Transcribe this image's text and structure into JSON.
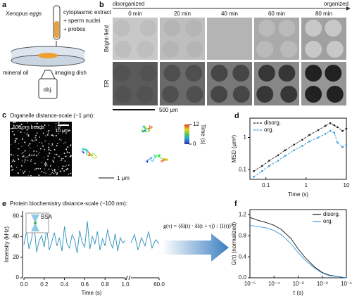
{
  "panel_labels": [
    "a",
    "b",
    "c",
    "d",
    "e",
    "f"
  ],
  "schematic": {
    "eggs": "Xenopus eggs",
    "extract": "cytoplasmic extract",
    "additions": [
      "+ sperm nuclei",
      "+ probes"
    ],
    "oil": "mineral oil",
    "dish": "imaging dish",
    "objective": "obj."
  },
  "timelapse": {
    "start": "disorganized",
    "end": "organized",
    "times": [
      "0 min",
      "20 min",
      "40 min",
      "60 min",
      "80 min"
    ],
    "rows": [
      "Bright-field",
      "ER"
    ],
    "scale_bar": "500 μm"
  },
  "tracking": {
    "title": "Organelle distance-scale (~1 μm):",
    "image_label": "100-nm beads",
    "image_scale": "10 μm",
    "trajectory_scale": "1 μm",
    "colorbar": {
      "label": "Time (s)",
      "ticks": [
        0,
        12
      ]
    }
  },
  "chart_data": [
    {
      "type": "line",
      "xlog": true,
      "ylog": true,
      "xlabel": "Time (s)",
      "ylabel": "MSD (μm²)",
      "xlim": [
        0.04,
        10
      ],
      "ylim": [
        0.05,
        4
      ],
      "xticks": [
        0.1,
        1,
        10
      ],
      "yticks": [
        0.1,
        1
      ],
      "legend": "upper left",
      "x": [
        0.05,
        0.08,
        0.12,
        0.2,
        0.3,
        0.5,
        0.8,
        1.2,
        2,
        3,
        4,
        5,
        6,
        8,
        10
      ],
      "series": [
        {
          "name": "disorg.",
          "color": "#222222",
          "values": [
            0.09,
            0.13,
            0.19,
            0.28,
            0.4,
            0.6,
            0.85,
            1.2,
            1.7,
            2.3,
            2.8,
            2.4,
            2.1,
            1.6,
            1.9
          ]
        },
        {
          "name": "org.",
          "color": "#3a9ad9",
          "values": [
            0.06,
            0.09,
            0.13,
            0.19,
            0.27,
            0.4,
            0.55,
            0.75,
            1.0,
            1.3,
            1.6,
            1.4,
            0.7,
            0.5,
            0.6
          ]
        }
      ]
    },
    {
      "type": "line",
      "title": "Protein biochemistry distance-scale (~100 nm):",
      "xlabel": "Time (s)",
      "ylabel": "Intensity (kHz)",
      "probe": "BSA",
      "annotation": "g(τ) = ⟨δI(t) · δI(t + τ)⟩ / ⟨I(t)⟩²",
      "color": "#2a8fbd",
      "ylim": [
        0,
        65
      ],
      "yticks": [
        0,
        20,
        40,
        60
      ],
      "segments": [
        {
          "xlim": [
            0,
            1
          ],
          "xticks": [
            {
              "value": 0,
              "label": "0.0"
            },
            {
              "value": 0.2,
              "label": "0.2"
            },
            {
              "value": 0.4,
              "label": "0.4"
            },
            {
              "value": 0.6,
              "label": "0.6"
            },
            {
              "value": 0.8,
              "label": "0.8"
            },
            {
              "value": 1,
              "label": "1.0"
            }
          ],
          "x": [
            0,
            0.025,
            0.05,
            0.075,
            0.1,
            0.125,
            0.15,
            0.175,
            0.2,
            0.225,
            0.25,
            0.275,
            0.3,
            0.325,
            0.35,
            0.375,
            0.4,
            0.425,
            0.45,
            0.475,
            0.5,
            0.525,
            0.55,
            0.575,
            0.6,
            0.625,
            0.65,
            0.675,
            0.7,
            0.725,
            0.75,
            0.775,
            0.8,
            0.825,
            0.85,
            0.875,
            0.9,
            0.925,
            0.95,
            0.975,
            1
          ],
          "values": [
            32,
            45,
            28,
            38,
            52,
            25,
            36,
            41,
            30,
            48,
            27,
            35,
            44,
            31,
            39,
            26,
            50,
            33,
            29,
            42,
            37,
            24,
            46,
            34,
            30,
            55,
            28,
            40,
            33,
            45,
            27,
            38,
            31,
            47,
            35,
            29,
            43,
            26,
            39,
            34,
            36
          ]
        },
        {
          "xlim": [
            59.8,
            60
          ],
          "xticks": [
            {
              "value": 60,
              "label": "60.0"
            }
          ],
          "x": [
            59.8,
            59.825,
            59.85,
            59.875,
            59.9,
            59.925,
            59.95,
            59.975,
            60
          ],
          "values": [
            34,
            42,
            27,
            39,
            31,
            45,
            29,
            37,
            33
          ]
        }
      ]
    },
    {
      "type": "line",
      "xlog": true,
      "xlabel": "τ (s)",
      "ylabel": "G(τ) (normalized)",
      "xlim": [
        1e-05,
        0.1
      ],
      "ylim": [
        0,
        1.3
      ],
      "legend": "upper right",
      "xticks": [
        {
          "value": 1e-05,
          "label": "10⁻⁵"
        },
        {
          "value": 0.0001,
          "label": "10⁻⁴"
        },
        {
          "value": 0.001,
          "label": "10⁻³"
        },
        {
          "value": 0.01,
          "label": "10⁻²"
        },
        {
          "value": 0.1,
          "label": "10⁻¹"
        }
      ],
      "yticks": [
        {
          "value": 0,
          "label": "0.0"
        },
        {
          "value": 0.4,
          "label": "0.4"
        },
        {
          "value": 0.8,
          "label": "0.8"
        },
        {
          "value": 1.2,
          "label": "1.2"
        }
      ],
      "x": [
        1e-05,
        2e-05,
        5e-05,
        0.0001,
        0.0002,
        0.0005,
        0.001,
        0.002,
        0.005,
        0.01,
        0.02,
        0.05,
        0.1
      ],
      "series": [
        {
          "name": "disorg.",
          "color": "#111111",
          "values": [
            1.15,
            1.1,
            1.05,
            1.0,
            0.92,
            0.75,
            0.55,
            0.38,
            0.2,
            0.1,
            0.05,
            0.02,
            0.0
          ]
        },
        {
          "name": "org.",
          "color": "#3a9ad9",
          "values": [
            1.0,
            0.98,
            0.95,
            0.9,
            0.82,
            0.65,
            0.48,
            0.33,
            0.18,
            0.09,
            0.04,
            0.02,
            0.0
          ]
        }
      ]
    }
  ]
}
